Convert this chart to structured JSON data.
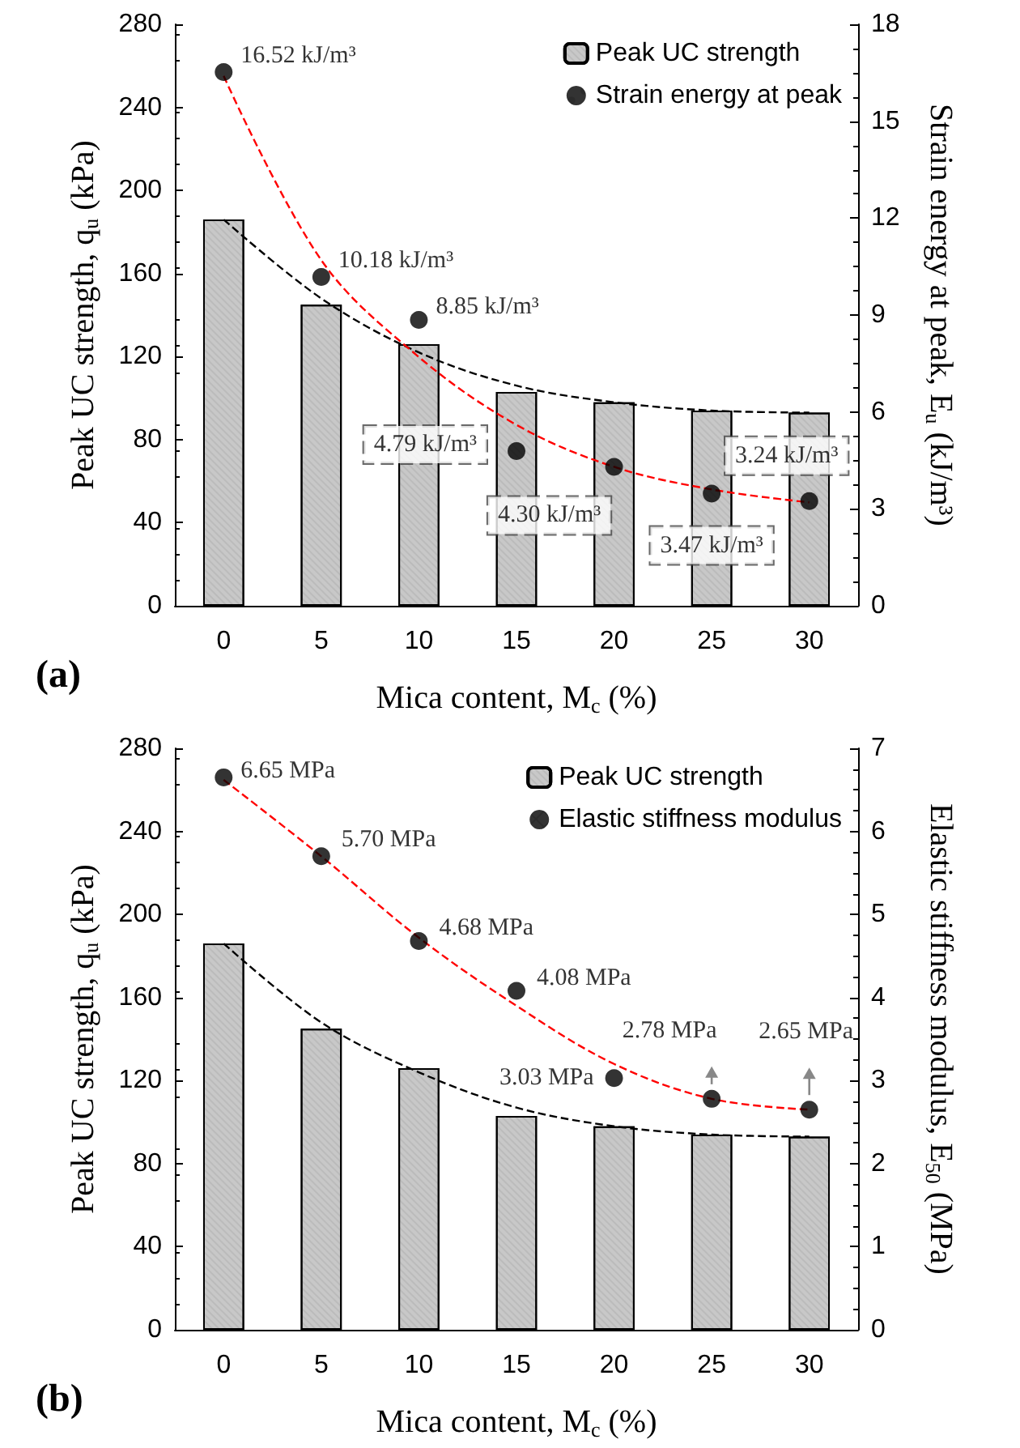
{
  "chart_data": [
    {
      "type": "bar",
      "xlabel": "Mica content, M$_{c}$ (%)",
      "ylabel": "Peak UC strength, q$_{u}$ (kPa)",
      "y2label": "Strain energy at peak, E$_{u}$ (kJ/m³)",
      "annotations": [
        "(a)"
      ],
      "categories": [
        "0",
        "5",
        "10",
        "15",
        "20",
        "25",
        "30"
      ],
      "ylim": [
        0,
        280
      ],
      "yticks": [
        0,
        40,
        80,
        120,
        160,
        200,
        240,
        280
      ],
      "y2lim": [
        0,
        18
      ],
      "y2ticks": [
        0,
        3,
        6,
        9,
        12,
        15,
        18
      ],
      "legend": "top right",
      "grid": false,
      "series": [
        {
          "name": "Peak UC strength",
          "color": "#c8c8c8",
          "values": [
            186,
            145,
            126,
            103,
            98,
            94,
            93
          ]
        },
        {
          "name": "Strain energy at peak",
          "type": "scatter",
          "marker": "circle",
          "axis": "y2",
          "color": "#000000",
          "values": [
            16.52,
            10.18,
            8.85,
            4.79,
            4.3,
            3.47,
            3.24
          ],
          "value_labels": [
            "16.52 kJ/m³",
            "10.18 kJ/m³",
            "8.85 kJ/m³",
            "4.79 kJ/m³",
            "4.30 kJ/m³",
            "3.47 kJ/m³",
            "3.24 kJ/m³"
          ]
        },
        {
          "type": "line",
          "line_style": "dashed",
          "marker": "none",
          "color": "#000000",
          "values": [
            186,
            148,
            122,
            106,
            98,
            94,
            93
          ]
        },
        {
          "type": "line",
          "line_style": "dashed",
          "marker": "none",
          "axis": "y2",
          "color": "#ff0000",
          "values": [
            16.4,
            10.7,
            7.7,
            5.6,
            4.3,
            3.6,
            3.2
          ]
        }
      ]
    },
    {
      "type": "bar",
      "xlabel": "Mica content, M$_{c}$ (%)",
      "ylabel": "Peak UC strength, q$_{u}$ (kPa)",
      "y2label": "Elastic stiffness modulus, E$_{50}$ (MPa)",
      "annotations": [
        "(b)"
      ],
      "categories": [
        "0",
        "5",
        "10",
        "15",
        "20",
        "25",
        "30"
      ],
      "ylim": [
        0,
        280
      ],
      "yticks": [
        0,
        40,
        80,
        120,
        160,
        200,
        240,
        280
      ],
      "y2lim": [
        0,
        7
      ],
      "y2ticks": [
        0,
        1,
        2,
        3,
        4,
        5,
        6,
        7
      ],
      "legend": "top right",
      "grid": false,
      "series": [
        {
          "name": "Peak UC strength",
          "color": "#c8c8c8",
          "values": [
            186,
            145,
            126,
            103,
            98,
            94,
            93
          ]
        },
        {
          "name": "Elastic stiffness modulus",
          "type": "scatter",
          "marker": "circle",
          "axis": "y2",
          "color": "#000000",
          "values": [
            6.65,
            5.7,
            4.68,
            4.08,
            3.03,
            2.78,
            2.65
          ],
          "value_labels": [
            "6.65 MPa",
            "5.70 MPa",
            "4.68 MPa",
            "4.08 MPa",
            "3.03 MPa",
            "2.78 MPa",
            "2.65 MPa"
          ]
        },
        {
          "type": "line",
          "line_style": "dashed",
          "marker": "none",
          "color": "#000000",
          "values": [
            186,
            148,
            124,
            107,
            98,
            94,
            93
          ]
        },
        {
          "type": "line",
          "line_style": "dashed",
          "marker": "none",
          "axis": "y2",
          "color": "#ff0000",
          "values": [
            6.62,
            5.7,
            4.72,
            3.9,
            3.2,
            2.78,
            2.65
          ]
        }
      ]
    }
  ]
}
